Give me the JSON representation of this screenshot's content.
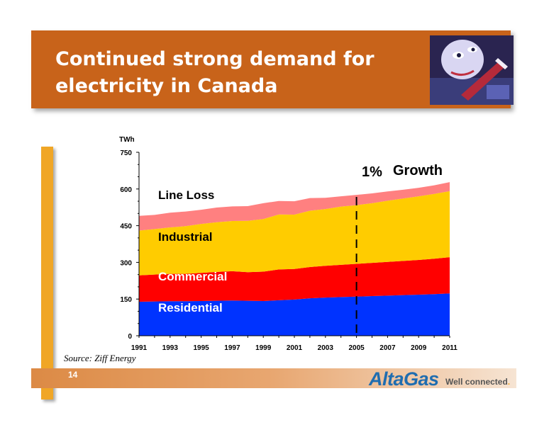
{
  "slide": {
    "title": "Continued strong demand for electricity in Canada",
    "source": "Source: Ziff Energy",
    "page_number": "14",
    "logo_text": "AltaGas",
    "logo_tagline": "Well connected",
    "logo_tagline_dot": "."
  },
  "chart_data": {
    "type": "area",
    "stacked": true,
    "unit_label": "TWh",
    "ylim": [
      0,
      750
    ],
    "yticks": [
      "0",
      "150",
      "300",
      "450",
      "600",
      "750"
    ],
    "x": [
      1991,
      1992,
      1993,
      1994,
      1995,
      1996,
      1997,
      1998,
      1999,
      2000,
      2001,
      2002,
      2003,
      2004,
      2005,
      2006,
      2007,
      2008,
      2009,
      2010,
      2011
    ],
    "xtick_labels": [
      "1991",
      "1993",
      "1995",
      "1997",
      "1999",
      "2001",
      "2003",
      "2005",
      "2007",
      "2009",
      "2011"
    ],
    "series": [
      {
        "name": "Residential",
        "color": "#0033ff",
        "values": [
          139,
          140,
          141,
          141,
          142,
          143,
          144,
          143,
          142,
          145,
          148,
          153,
          156,
          158,
          160,
          162,
          164,
          166,
          168,
          170,
          173
        ]
      },
      {
        "name": "Commercial",
        "color": "#ff0000",
        "values": [
          108,
          110,
          112,
          112,
          115,
          118,
          120,
          117,
          120,
          126,
          125,
          128,
          130,
          132,
          134,
          136,
          138,
          140,
          142,
          145,
          148
        ]
      },
      {
        "name": "Industrial",
        "color": "#ffcc00",
        "values": [
          183,
          186,
          190,
          195,
          200,
          203,
          205,
          210,
          215,
          225,
          222,
          230,
          232,
          238,
          240,
          244,
          250,
          255,
          260,
          265,
          270
        ]
      },
      {
        "name": "Line Loss",
        "color": "#ff8080",
        "values": [
          60,
          58,
          60,
          60,
          58,
          60,
          60,
          60,
          65,
          55,
          55,
          52,
          46,
          42,
          42,
          40,
          38,
          36,
          35,
          35,
          37
        ]
      }
    ],
    "annotation": {
      "number": "1%",
      "text": "Growth",
      "at_x": 2005
    }
  }
}
